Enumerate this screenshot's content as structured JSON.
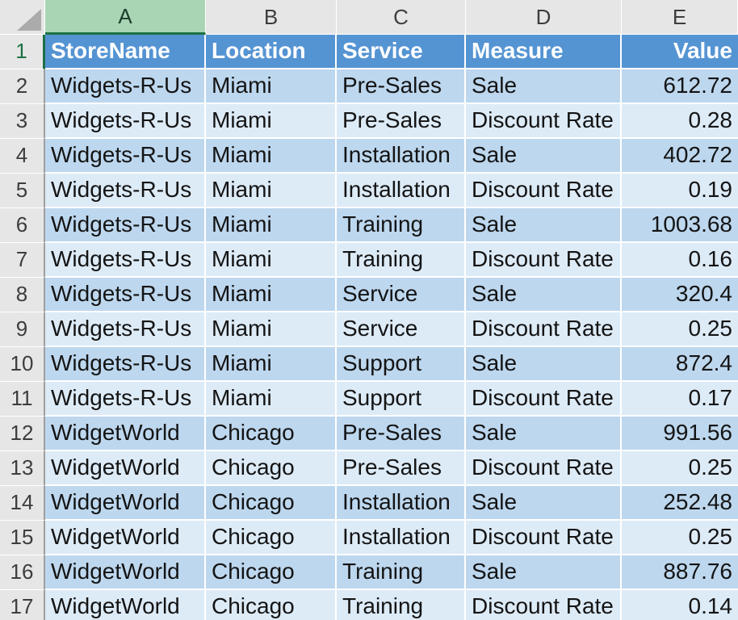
{
  "sheet": {
    "selected_column": "A",
    "selected_row": "1",
    "columns": [
      {
        "letter": "A"
      },
      {
        "letter": "B"
      },
      {
        "letter": "C"
      },
      {
        "letter": "D"
      },
      {
        "letter": "E"
      }
    ],
    "header": {
      "row_num": "1",
      "cells": [
        "StoreName",
        "Location",
        "Service",
        "Measure",
        "Value"
      ]
    },
    "rows": [
      {
        "num": "2",
        "cells": [
          "Widgets-R-Us",
          "Miami",
          "Pre-Sales",
          "Sale",
          "612.72"
        ]
      },
      {
        "num": "3",
        "cells": [
          "Widgets-R-Us",
          "Miami",
          "Pre-Sales",
          "Discount Rate",
          "0.28"
        ]
      },
      {
        "num": "4",
        "cells": [
          "Widgets-R-Us",
          "Miami",
          "Installation",
          "Sale",
          "402.72"
        ]
      },
      {
        "num": "5",
        "cells": [
          "Widgets-R-Us",
          "Miami",
          "Installation",
          "Discount Rate",
          "0.19"
        ]
      },
      {
        "num": "6",
        "cells": [
          "Widgets-R-Us",
          "Miami",
          "Training",
          "Sale",
          "1003.68"
        ]
      },
      {
        "num": "7",
        "cells": [
          "Widgets-R-Us",
          "Miami",
          "Training",
          "Discount Rate",
          "0.16"
        ]
      },
      {
        "num": "8",
        "cells": [
          "Widgets-R-Us",
          "Miami",
          "Service",
          "Sale",
          "320.4"
        ]
      },
      {
        "num": "9",
        "cells": [
          "Widgets-R-Us",
          "Miami",
          "Service",
          "Discount Rate",
          "0.25"
        ]
      },
      {
        "num": "10",
        "cells": [
          "Widgets-R-Us",
          "Miami",
          "Support",
          "Sale",
          "872.4"
        ]
      },
      {
        "num": "11",
        "cells": [
          "Widgets-R-Us",
          "Miami",
          "Support",
          "Discount Rate",
          "0.17"
        ]
      },
      {
        "num": "12",
        "cells": [
          "WidgetWorld",
          "Chicago",
          "Pre-Sales",
          "Sale",
          "991.56"
        ]
      },
      {
        "num": "13",
        "cells": [
          "WidgetWorld",
          "Chicago",
          "Pre-Sales",
          "Discount Rate",
          "0.25"
        ]
      },
      {
        "num": "14",
        "cells": [
          "WidgetWorld",
          "Chicago",
          "Installation",
          "Sale",
          "252.48"
        ]
      },
      {
        "num": "15",
        "cells": [
          "WidgetWorld",
          "Chicago",
          "Installation",
          "Discount Rate",
          "0.25"
        ]
      },
      {
        "num": "16",
        "cells": [
          "WidgetWorld",
          "Chicago",
          "Training",
          "Sale",
          "887.76"
        ]
      },
      {
        "num": "17",
        "cells": [
          "WidgetWorld",
          "Chicago",
          "Training",
          "Discount Rate",
          "0.14"
        ]
      }
    ],
    "colors": {
      "table_header_fill": "#5594D3",
      "band_dark": "#BDD7EE",
      "band_light": "#DDEBF7",
      "chrome_gray": "#E6E6E6",
      "selected_column_fill": "#A9D5B5",
      "accent_green": "#1E7145"
    }
  }
}
